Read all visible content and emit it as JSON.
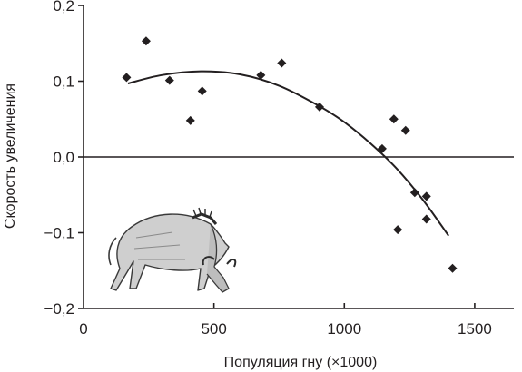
{
  "chart_data": {
    "type": "scatter",
    "title": "",
    "xlabel": "Популяция гну (×1000)",
    "ylabel": "Скорость увеличения",
    "xlim": [
      0,
      1650
    ],
    "ylim": [
      -0.2,
      0.2
    ],
    "x_ticks": [
      {
        "value": 0,
        "label": "0"
      },
      {
        "value": 500,
        "label": "500"
      },
      {
        "value": 1000,
        "label": "1000"
      },
      {
        "value": 1500,
        "label": "1500"
      }
    ],
    "y_ticks": [
      {
        "value": 0.2,
        "label": "0,2"
      },
      {
        "value": 0.1,
        "label": "0,1"
      },
      {
        "value": 0.0,
        "label": "0,0"
      },
      {
        "value": -0.1,
        "label": "−0,1"
      },
      {
        "value": -0.2,
        "label": "−0,2"
      }
    ],
    "zero_line": true,
    "grid": false,
    "marker": "diamond",
    "points": [
      {
        "x": 165,
        "y": 0.105
      },
      {
        "x": 240,
        "y": 0.153
      },
      {
        "x": 330,
        "y": 0.101
      },
      {
        "x": 410,
        "y": 0.048
      },
      {
        "x": 455,
        "y": 0.087
      },
      {
        "x": 680,
        "y": 0.108
      },
      {
        "x": 760,
        "y": 0.124
      },
      {
        "x": 905,
        "y": 0.066
      },
      {
        "x": 1145,
        "y": 0.011
      },
      {
        "x": 1190,
        "y": 0.05
      },
      {
        "x": 1205,
        "y": -0.096
      },
      {
        "x": 1235,
        "y": 0.035
      },
      {
        "x": 1270,
        "y": -0.047
      },
      {
        "x": 1315,
        "y": -0.052
      },
      {
        "x": 1315,
        "y": -0.082
      },
      {
        "x": 1415,
        "y": -0.147
      }
    ],
    "trend_curve": [
      {
        "x": 170,
        "y": 0.097
      },
      {
        "x": 300,
        "y": 0.108
      },
      {
        "x": 450,
        "y": 0.113
      },
      {
        "x": 600,
        "y": 0.109
      },
      {
        "x": 750,
        "y": 0.094
      },
      {
        "x": 900,
        "y": 0.068
      },
      {
        "x": 1000,
        "y": 0.046
      },
      {
        "x": 1100,
        "y": 0.018
      },
      {
        "x": 1200,
        "y": -0.015
      },
      {
        "x": 1300,
        "y": -0.056
      },
      {
        "x": 1400,
        "y": -0.104
      }
    ],
    "illustration": "wildebeest-grazing"
  }
}
